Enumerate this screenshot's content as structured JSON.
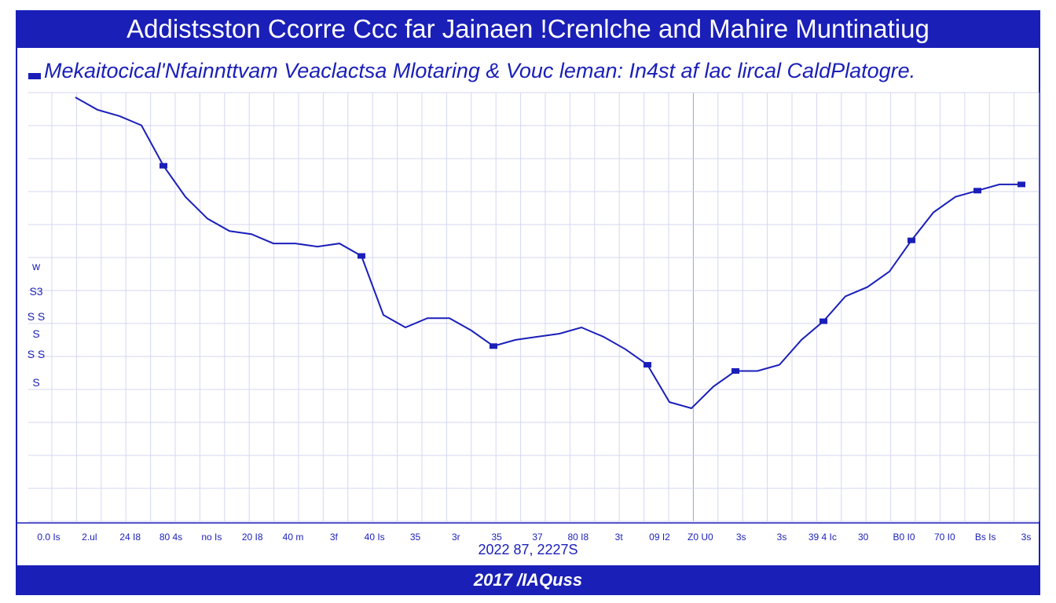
{
  "chart_data": {
    "type": "line",
    "title": "Addistsston Ccorre Ccc far Jainaen !Crenlche and Mahire Muntinatiug",
    "subtitle": "Mekaitocical'Nfainnttvam Veaclactsa Mlotaring & Vouc leman: In4st af lac lircal CaldPlatogre.",
    "xlabel": "2022 87, 2227S",
    "footer": "2017 /IAQuss",
    "legend_placement": "top-left",
    "grid": true,
    "line_color": "#1a1fb8",
    "x_tick_labels": [
      "0.0 Is",
      "2.ul",
      "24 I8",
      "80 4s",
      "no Is",
      "20 I8",
      "40 m",
      "3f",
      "40 Is",
      "35",
      "3r",
      "35",
      "37",
      "80 I8",
      "3t",
      "09 I2",
      "Z0 U0",
      "3s",
      "3s",
      "39 4 Ic",
      "30",
      "B0 I0",
      "70 I0",
      "Bs Is",
      "3s"
    ],
    "y_tick_labels": [
      "w",
      "S3",
      "S S",
      "S",
      "S S",
      "S"
    ],
    "ylim": [
      0,
      100
    ],
    "x": [
      0,
      1,
      2,
      3,
      4,
      5,
      6,
      7,
      8,
      9,
      10,
      11,
      12,
      13,
      14,
      15,
      16,
      17,
      18,
      19,
      20,
      21,
      22,
      23,
      24,
      25,
      26,
      27,
      28,
      29,
      30,
      31,
      32,
      33,
      34,
      35,
      36,
      37,
      38,
      39,
      40,
      41,
      42,
      43
    ],
    "values": [
      100,
      96,
      94,
      91,
      78,
      68,
      61,
      57,
      56,
      53,
      53,
      52,
      53,
      49,
      30,
      26,
      29,
      29,
      25,
      20,
      22,
      23,
      24,
      26,
      23,
      19,
      14,
      2,
      0,
      7,
      12,
      12,
      14,
      22,
      28,
      36,
      39,
      44,
      54,
      63,
      68,
      70,
      72,
      72
    ],
    "markers_at": [
      4,
      13,
      19,
      26,
      30,
      34,
      38,
      41,
      43
    ]
  }
}
